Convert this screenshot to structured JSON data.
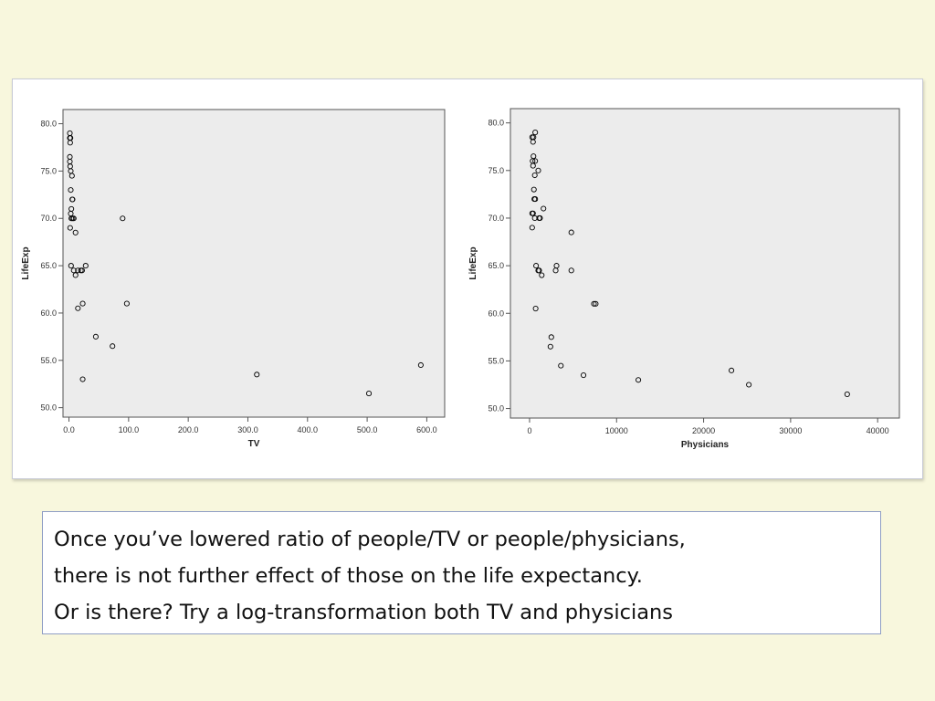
{
  "caption": {
    "line1": "Once you’ve lowered ratio of people/TV or people/physicians,",
    "line2": "there is not further effect of those on the life expectancy.",
    "line3": "Or is there?  Try a log-transformation both TV and physicians"
  },
  "colors": {
    "slide_background": "#f8f7dd",
    "plot_area": "#ececec",
    "marker": "#000000",
    "caption_border": "#8f9ec4"
  },
  "chart_data": [
    {
      "type": "scatter",
      "title": "",
      "xlabel": "TV",
      "ylabel": "LifeExp",
      "xlim": [
        -10,
        630
      ],
      "ylim": [
        49,
        81.5
      ],
      "grid": false,
      "marker": "open-circle",
      "xticks": [
        0,
        100,
        200,
        300,
        400,
        500,
        600
      ],
      "xtick_labels": [
        "0.0",
        "100.0",
        "200.0",
        "300.0",
        "400.0",
        "500.0",
        "600.0"
      ],
      "yticks": [
        50,
        55,
        60,
        65,
        70,
        75,
        80
      ],
      "ytick_labels": [
        "50.0",
        "55.0",
        "60.0",
        "65.0",
        "70.0",
        "75.0",
        "80.0"
      ],
      "points": [
        {
          "x": 1.5,
          "y": 79.0
        },
        {
          "x": 1.5,
          "y": 78.5
        },
        {
          "x": 2.5,
          "y": 78.5
        },
        {
          "x": 2.0,
          "y": 78.0
        },
        {
          "x": 1.5,
          "y": 76.5
        },
        {
          "x": 1.5,
          "y": 76.0
        },
        {
          "x": 2.0,
          "y": 75.5
        },
        {
          "x": 3.0,
          "y": 75.0
        },
        {
          "x": 5.0,
          "y": 74.5
        },
        {
          "x": 3.0,
          "y": 73.0
        },
        {
          "x": 5.5,
          "y": 72.0
        },
        {
          "x": 6.0,
          "y": 72.0
        },
        {
          "x": 4.0,
          "y": 71.0
        },
        {
          "x": 3.0,
          "y": 70.5
        },
        {
          "x": 4.0,
          "y": 70.0
        },
        {
          "x": 6.0,
          "y": 70.0
        },
        {
          "x": 8.0,
          "y": 70.0
        },
        {
          "x": 2.0,
          "y": 69.0
        },
        {
          "x": 11.0,
          "y": 68.5
        },
        {
          "x": 90.0,
          "y": 70.0
        },
        {
          "x": 3.5,
          "y": 65.0
        },
        {
          "x": 8.0,
          "y": 64.5
        },
        {
          "x": 11.0,
          "y": 64.0
        },
        {
          "x": 15.0,
          "y": 64.5
        },
        {
          "x": 20.0,
          "y": 64.5
        },
        {
          "x": 22.0,
          "y": 64.5
        },
        {
          "x": 28.0,
          "y": 65.0
        },
        {
          "x": 23.0,
          "y": 61.0
        },
        {
          "x": 15.0,
          "y": 60.5
        },
        {
          "x": 97.0,
          "y": 61.0
        },
        {
          "x": 45.0,
          "y": 57.5
        },
        {
          "x": 73.0,
          "y": 56.5
        },
        {
          "x": 23.0,
          "y": 53.0
        },
        {
          "x": 315.0,
          "y": 53.5
        },
        {
          "x": 503.0,
          "y": 51.5
        },
        {
          "x": 590.0,
          "y": 54.5
        }
      ]
    },
    {
      "type": "scatter",
      "title": "",
      "xlabel": "Physicians",
      "ylabel": "LifeExp",
      "xlim": [
        -2200,
        42500
      ],
      "ylim": [
        49,
        81.5
      ],
      "grid": false,
      "marker": "open-circle",
      "xticks": [
        0,
        10000,
        20000,
        30000,
        40000
      ],
      "xtick_labels": [
        "0",
        "10000",
        "20000",
        "30000",
        "40000"
      ],
      "yticks": [
        50,
        55,
        60,
        65,
        70,
        75,
        80
      ],
      "ytick_labels": [
        "50.0",
        "55.0",
        "60.0",
        "65.0",
        "70.0",
        "75.0",
        "80.0"
      ],
      "points": [
        {
          "x": 650,
          "y": 79.0
        },
        {
          "x": 300,
          "y": 78.5
        },
        {
          "x": 450,
          "y": 78.5
        },
        {
          "x": 400,
          "y": 78.0
        },
        {
          "x": 450,
          "y": 76.5
        },
        {
          "x": 350,
          "y": 76.0
        },
        {
          "x": 650,
          "y": 76.0
        },
        {
          "x": 400,
          "y": 75.5
        },
        {
          "x": 1000,
          "y": 75.0
        },
        {
          "x": 600,
          "y": 74.5
        },
        {
          "x": 500,
          "y": 73.0
        },
        {
          "x": 550,
          "y": 72.0
        },
        {
          "x": 650,
          "y": 72.0
        },
        {
          "x": 1600,
          "y": 71.0
        },
        {
          "x": 300,
          "y": 70.5
        },
        {
          "x": 400,
          "y": 70.5
        },
        {
          "x": 600,
          "y": 70.0
        },
        {
          "x": 1100,
          "y": 70.0
        },
        {
          "x": 1200,
          "y": 70.0
        },
        {
          "x": 300,
          "y": 69.0
        },
        {
          "x": 4800,
          "y": 68.5
        },
        {
          "x": 750,
          "y": 65.0
        },
        {
          "x": 1000,
          "y": 64.5
        },
        {
          "x": 1100,
          "y": 64.5
        },
        {
          "x": 1400,
          "y": 64.0
        },
        {
          "x": 3000,
          "y": 64.5
        },
        {
          "x": 3100,
          "y": 65.0
        },
        {
          "x": 4800,
          "y": 64.5
        },
        {
          "x": 7400,
          "y": 61.0
        },
        {
          "x": 7600,
          "y": 61.0
        },
        {
          "x": 700,
          "y": 60.5
        },
        {
          "x": 2500,
          "y": 57.5
        },
        {
          "x": 2400,
          "y": 56.5
        },
        {
          "x": 3600,
          "y": 54.5
        },
        {
          "x": 6200,
          "y": 53.5
        },
        {
          "x": 12500,
          "y": 53.0
        },
        {
          "x": 23200,
          "y": 54.0
        },
        {
          "x": 25200,
          "y": 52.5
        },
        {
          "x": 36500,
          "y": 51.5
        }
      ]
    }
  ]
}
